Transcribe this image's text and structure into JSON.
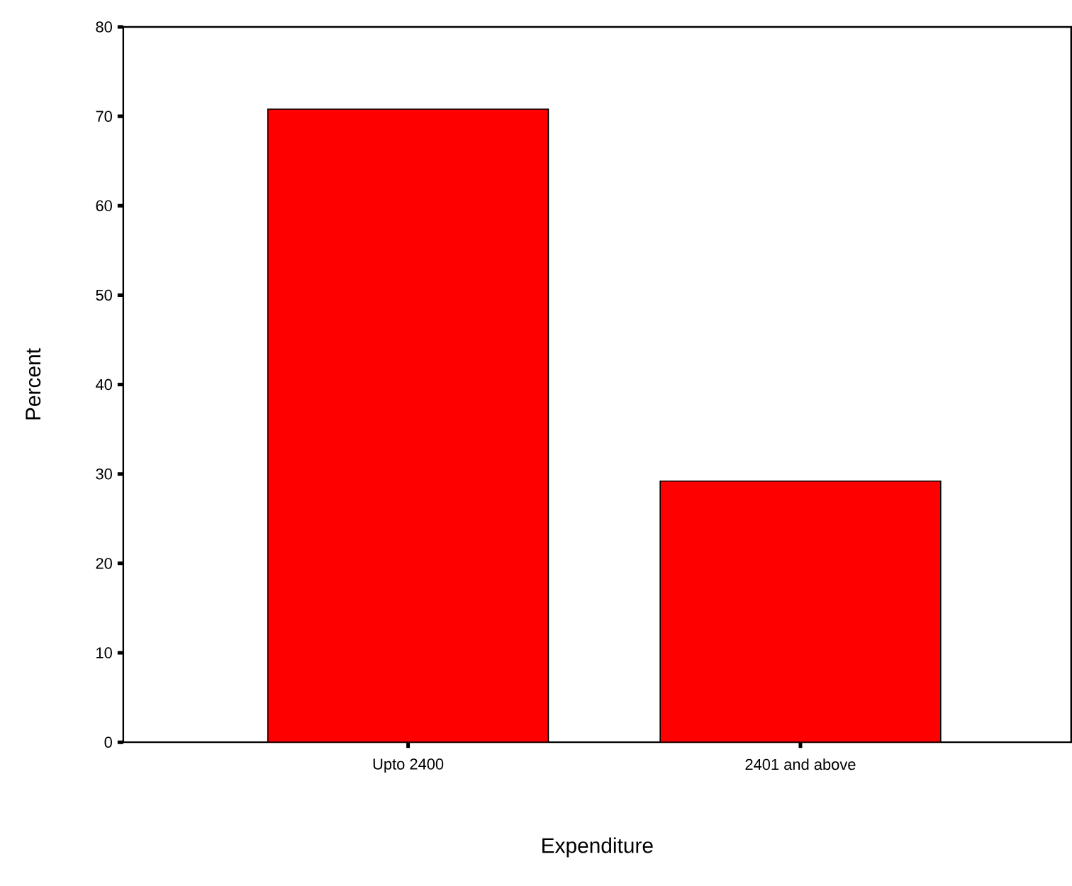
{
  "chart_data": {
    "type": "bar",
    "xlabel": "Expenditure",
    "ylabel": "Percent",
    "categories": [
      "Upto 2400",
      "2401 and above"
    ],
    "values": [
      70.8,
      29.2
    ],
    "color": "#ff0000",
    "ylim": [
      0,
      80
    ],
    "yticks": [
      0,
      10,
      20,
      30,
      40,
      50,
      60,
      70,
      80
    ]
  }
}
